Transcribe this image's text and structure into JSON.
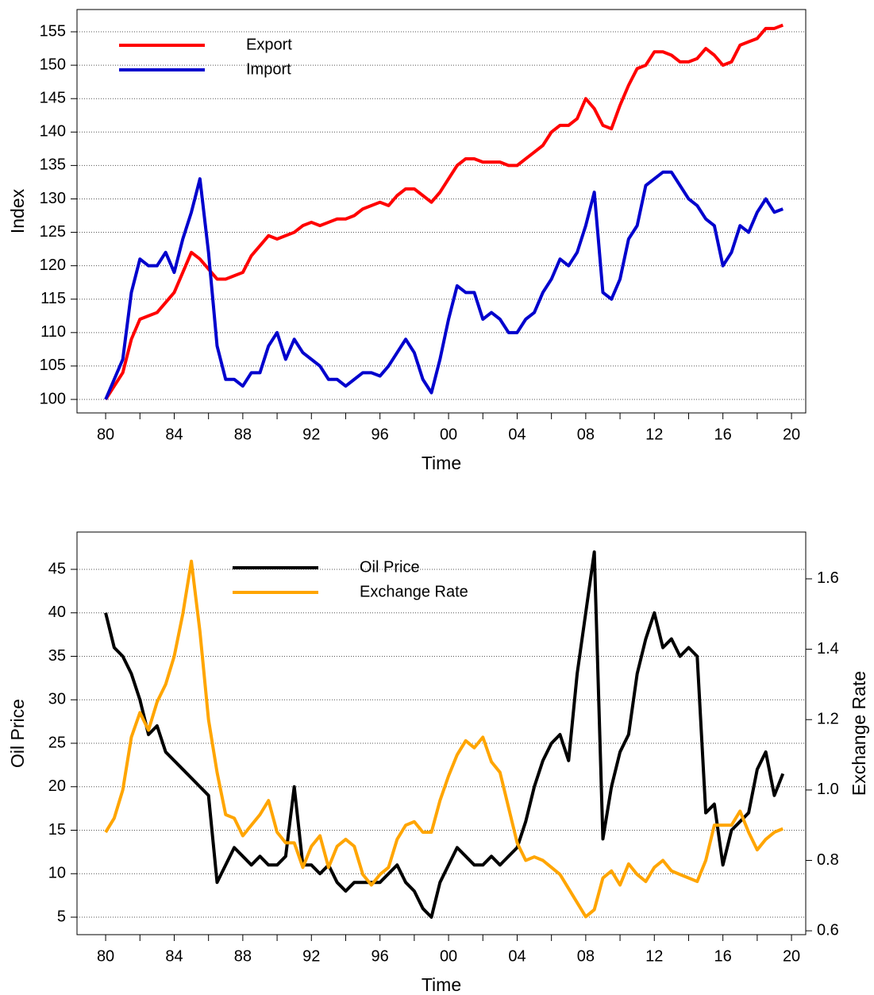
{
  "chart_data": [
    {
      "type": "line",
      "xlabel": "Time",
      "ylabel": "Index",
      "legend": "upper left",
      "grid": "y",
      "xlim": [
        1978.33,
        2020.83
      ],
      "xticks": [
        {
          "value": 1980,
          "label": "80"
        },
        {
          "value": 1982,
          "label": null
        },
        {
          "value": 1984,
          "label": "84"
        },
        {
          "value": 1986,
          "label": null
        },
        {
          "value": 1988,
          "label": "88"
        },
        {
          "value": 1990,
          "label": null
        },
        {
          "value": 1992,
          "label": "92"
        },
        {
          "value": 1994,
          "label": null
        },
        {
          "value": 1996,
          "label": "96"
        },
        {
          "value": 1998,
          "label": null
        },
        {
          "value": 2000,
          "label": "00"
        },
        {
          "value": 2002,
          "label": null
        },
        {
          "value": 2004,
          "label": "04"
        },
        {
          "value": 2006,
          "label": null
        },
        {
          "value": 2008,
          "label": "08"
        },
        {
          "value": 2010,
          "label": null
        },
        {
          "value": 2012,
          "label": "12"
        },
        {
          "value": 2014,
          "label": null
        },
        {
          "value": 2016,
          "label": "16"
        },
        {
          "value": 2018,
          "label": null
        },
        {
          "value": 2020,
          "label": "20"
        }
      ],
      "ylim": [
        97.98,
        158.33
      ],
      "yticks": [
        100,
        105,
        110,
        115,
        120,
        125,
        130,
        135,
        140,
        145,
        150,
        155
      ],
      "x": [
        1980,
        1980.5,
        1981,
        1981.5,
        1982,
        1982.5,
        1983,
        1983.5,
        1984,
        1984.5,
        1985,
        1985.5,
        1986,
        1986.5,
        1987,
        1987.5,
        1988,
        1988.5,
        1989,
        1989.5,
        1990,
        1990.5,
        1991,
        1991.5,
        1992,
        1992.5,
        1993,
        1993.5,
        1994,
        1994.5,
        1995,
        1995.5,
        1996,
        1996.5,
        1997,
        1997.5,
        1998,
        1998.5,
        1999,
        1999.5,
        2000,
        2000.5,
        2001,
        2001.5,
        2002,
        2002.5,
        2003,
        2003.5,
        2004,
        2004.5,
        2005,
        2005.5,
        2006,
        2006.5,
        2007,
        2007.5,
        2008,
        2008.5,
        2009,
        2009.5,
        2010,
        2010.5,
        2011,
        2011.5,
        2012,
        2012.5,
        2013,
        2013.5,
        2014,
        2014.5,
        2015,
        2015.5,
        2016,
        2016.5,
        2017,
        2017.5,
        2018,
        2018.5,
        2019,
        2019.5
      ],
      "series": [
        {
          "name": "Export",
          "color": "#ff0000",
          "values": [
            100,
            102,
            104,
            109,
            112,
            112.5,
            113,
            114.5,
            116,
            119,
            122,
            121,
            119.5,
            118,
            118,
            118.5,
            119,
            121.5,
            123,
            124.5,
            124,
            124.5,
            125,
            126,
            126.5,
            126,
            126.5,
            127,
            127,
            127.5,
            128.5,
            129,
            129.5,
            129,
            130.5,
            131.5,
            131.5,
            130.5,
            129.5,
            131,
            133,
            135,
            136,
            136,
            135.5,
            135.5,
            135.5,
            135,
            135,
            136,
            137,
            138,
            140,
            141,
            141,
            142,
            145,
            143.5,
            141,
            140.5,
            144,
            147,
            149.5,
            150,
            152,
            152,
            151.5,
            150.5,
            150.5,
            151,
            152.5,
            151.5,
            150,
            150.5,
            153,
            153.5,
            154,
            155.5,
            155.5,
            156
          ]
        },
        {
          "name": "Import",
          "color": "#0000cd",
          "values": [
            100,
            103,
            106,
            116,
            121,
            120,
            120,
            122,
            119,
            124,
            128,
            133,
            122,
            108,
            103,
            103,
            102,
            104,
            104,
            108,
            110,
            106,
            109,
            107,
            106,
            105,
            103,
            103,
            102,
            103,
            104,
            104,
            103.5,
            105,
            107,
            109,
            107,
            103,
            101,
            106,
            112,
            117,
            116,
            116,
            112,
            113,
            112,
            110,
            110,
            112,
            113,
            116,
            118,
            121,
            120,
            122,
            126,
            131,
            116,
            115,
            118,
            124,
            126,
            132,
            133,
            134,
            134,
            132,
            130,
            129,
            127,
            126,
            120,
            122,
            126,
            125,
            128,
            130,
            128,
            128.5
          ]
        }
      ]
    },
    {
      "type": "line",
      "xlabel": "Time",
      "ylabel": "Oil Price",
      "y2label": "Exchange Rate",
      "legend": "upper left",
      "grid": "y",
      "xlim": [
        1978.33,
        2020.83
      ],
      "xticks": [
        {
          "value": 1980,
          "label": "80"
        },
        {
          "value": 1982,
          "label": null
        },
        {
          "value": 1984,
          "label": "84"
        },
        {
          "value": 1986,
          "label": null
        },
        {
          "value": 1988,
          "label": "88"
        },
        {
          "value": 1990,
          "label": null
        },
        {
          "value": 1992,
          "label": "92"
        },
        {
          "value": 1994,
          "label": null
        },
        {
          "value": 1996,
          "label": "96"
        },
        {
          "value": 1998,
          "label": null
        },
        {
          "value": 2000,
          "label": "00"
        },
        {
          "value": 2002,
          "label": null
        },
        {
          "value": 2004,
          "label": "04"
        },
        {
          "value": 2006,
          "label": null
        },
        {
          "value": 2008,
          "label": "08"
        },
        {
          "value": 2010,
          "label": null
        },
        {
          "value": 2012,
          "label": "12"
        },
        {
          "value": 2014,
          "label": null
        },
        {
          "value": 2016,
          "label": "16"
        },
        {
          "value": 2018,
          "label": null
        },
        {
          "value": 2020,
          "label": "20"
        }
      ],
      "ylim": [
        2.99,
        49.29
      ],
      "yticks": [
        5,
        10,
        15,
        20,
        25,
        30,
        35,
        40,
        45
      ],
      "y2lim": [
        0.589,
        1.733
      ],
      "y2ticks": [
        0.6,
        0.8,
        {
          "value": 1,
          "label": "1.0"
        },
        1.2,
        1.4,
        1.6
      ],
      "x": [
        1980,
        1980.5,
        1981,
        1981.5,
        1982,
        1982.5,
        1983,
        1983.5,
        1984,
        1984.5,
        1985,
        1985.5,
        1986,
        1986.5,
        1987,
        1987.5,
        1988,
        1988.5,
        1989,
        1989.5,
        1990,
        1990.5,
        1991,
        1991.5,
        1992,
        1992.5,
        1993,
        1993.5,
        1994,
        1994.5,
        1995,
        1995.5,
        1996,
        1996.5,
        1997,
        1997.5,
        1998,
        1998.5,
        1999,
        1999.5,
        2000,
        2000.5,
        2001,
        2001.5,
        2002,
        2002.5,
        2003,
        2003.5,
        2004,
        2004.5,
        2005,
        2005.5,
        2006,
        2006.5,
        2007,
        2007.5,
        2008,
        2008.5,
        2009,
        2009.5,
        2010,
        2010.5,
        2011,
        2011.5,
        2012,
        2012.5,
        2013,
        2013.5,
        2014,
        2014.5,
        2015,
        2015.5,
        2016,
        2016.5,
        2017,
        2017.5,
        2018,
        2018.5,
        2019,
        2019.5
      ],
      "series": [
        {
          "name": "Oil Price",
          "color": "#000000",
          "values": [
            40,
            36,
            35,
            33,
            30,
            26,
            27,
            24,
            23,
            22,
            21,
            20,
            19,
            9,
            11,
            13,
            12,
            11,
            12,
            11,
            11,
            12,
            20,
            11,
            11,
            10,
            11,
            9,
            8,
            9,
            9,
            9,
            9,
            10,
            11,
            9,
            8,
            6,
            5,
            9,
            11,
            13,
            12,
            11,
            11,
            12,
            11,
            12,
            13,
            16,
            20,
            23,
            25,
            26,
            23,
            33,
            40,
            47,
            14,
            20,
            24,
            26,
            33,
            37,
            40,
            36,
            37,
            35,
            36,
            35,
            17,
            18,
            11,
            15,
            16,
            17,
            22,
            24,
            19,
            21.5
          ]
        },
        {
          "name": "Exchange Rate",
          "color": "#ffa500",
          "axis": "y2",
          "values": [
            0.88,
            0.92,
            1.0,
            1.15,
            1.22,
            1.17,
            1.25,
            1.3,
            1.38,
            1.5,
            1.65,
            1.45,
            1.2,
            1.05,
            0.93,
            0.92,
            0.87,
            0.9,
            0.93,
            0.97,
            0.88,
            0.85,
            0.85,
            0.78,
            0.84,
            0.87,
            0.78,
            0.84,
            0.86,
            0.84,
            0.76,
            0.73,
            0.76,
            0.78,
            0.86,
            0.9,
            0.91,
            0.88,
            0.88,
            0.97,
            1.04,
            1.1,
            1.14,
            1.12,
            1.15,
            1.08,
            1.05,
            0.95,
            0.85,
            0.8,
            0.81,
            0.8,
            0.78,
            0.76,
            0.72,
            0.68,
            0.64,
            0.66,
            0.75,
            0.77,
            0.73,
            0.79,
            0.76,
            0.74,
            0.78,
            0.8,
            0.77,
            0.76,
            0.75,
            0.74,
            0.8,
            0.9,
            0.9,
            0.9,
            0.94,
            0.88,
            0.83,
            0.86,
            0.88,
            0.89
          ]
        }
      ]
    }
  ]
}
